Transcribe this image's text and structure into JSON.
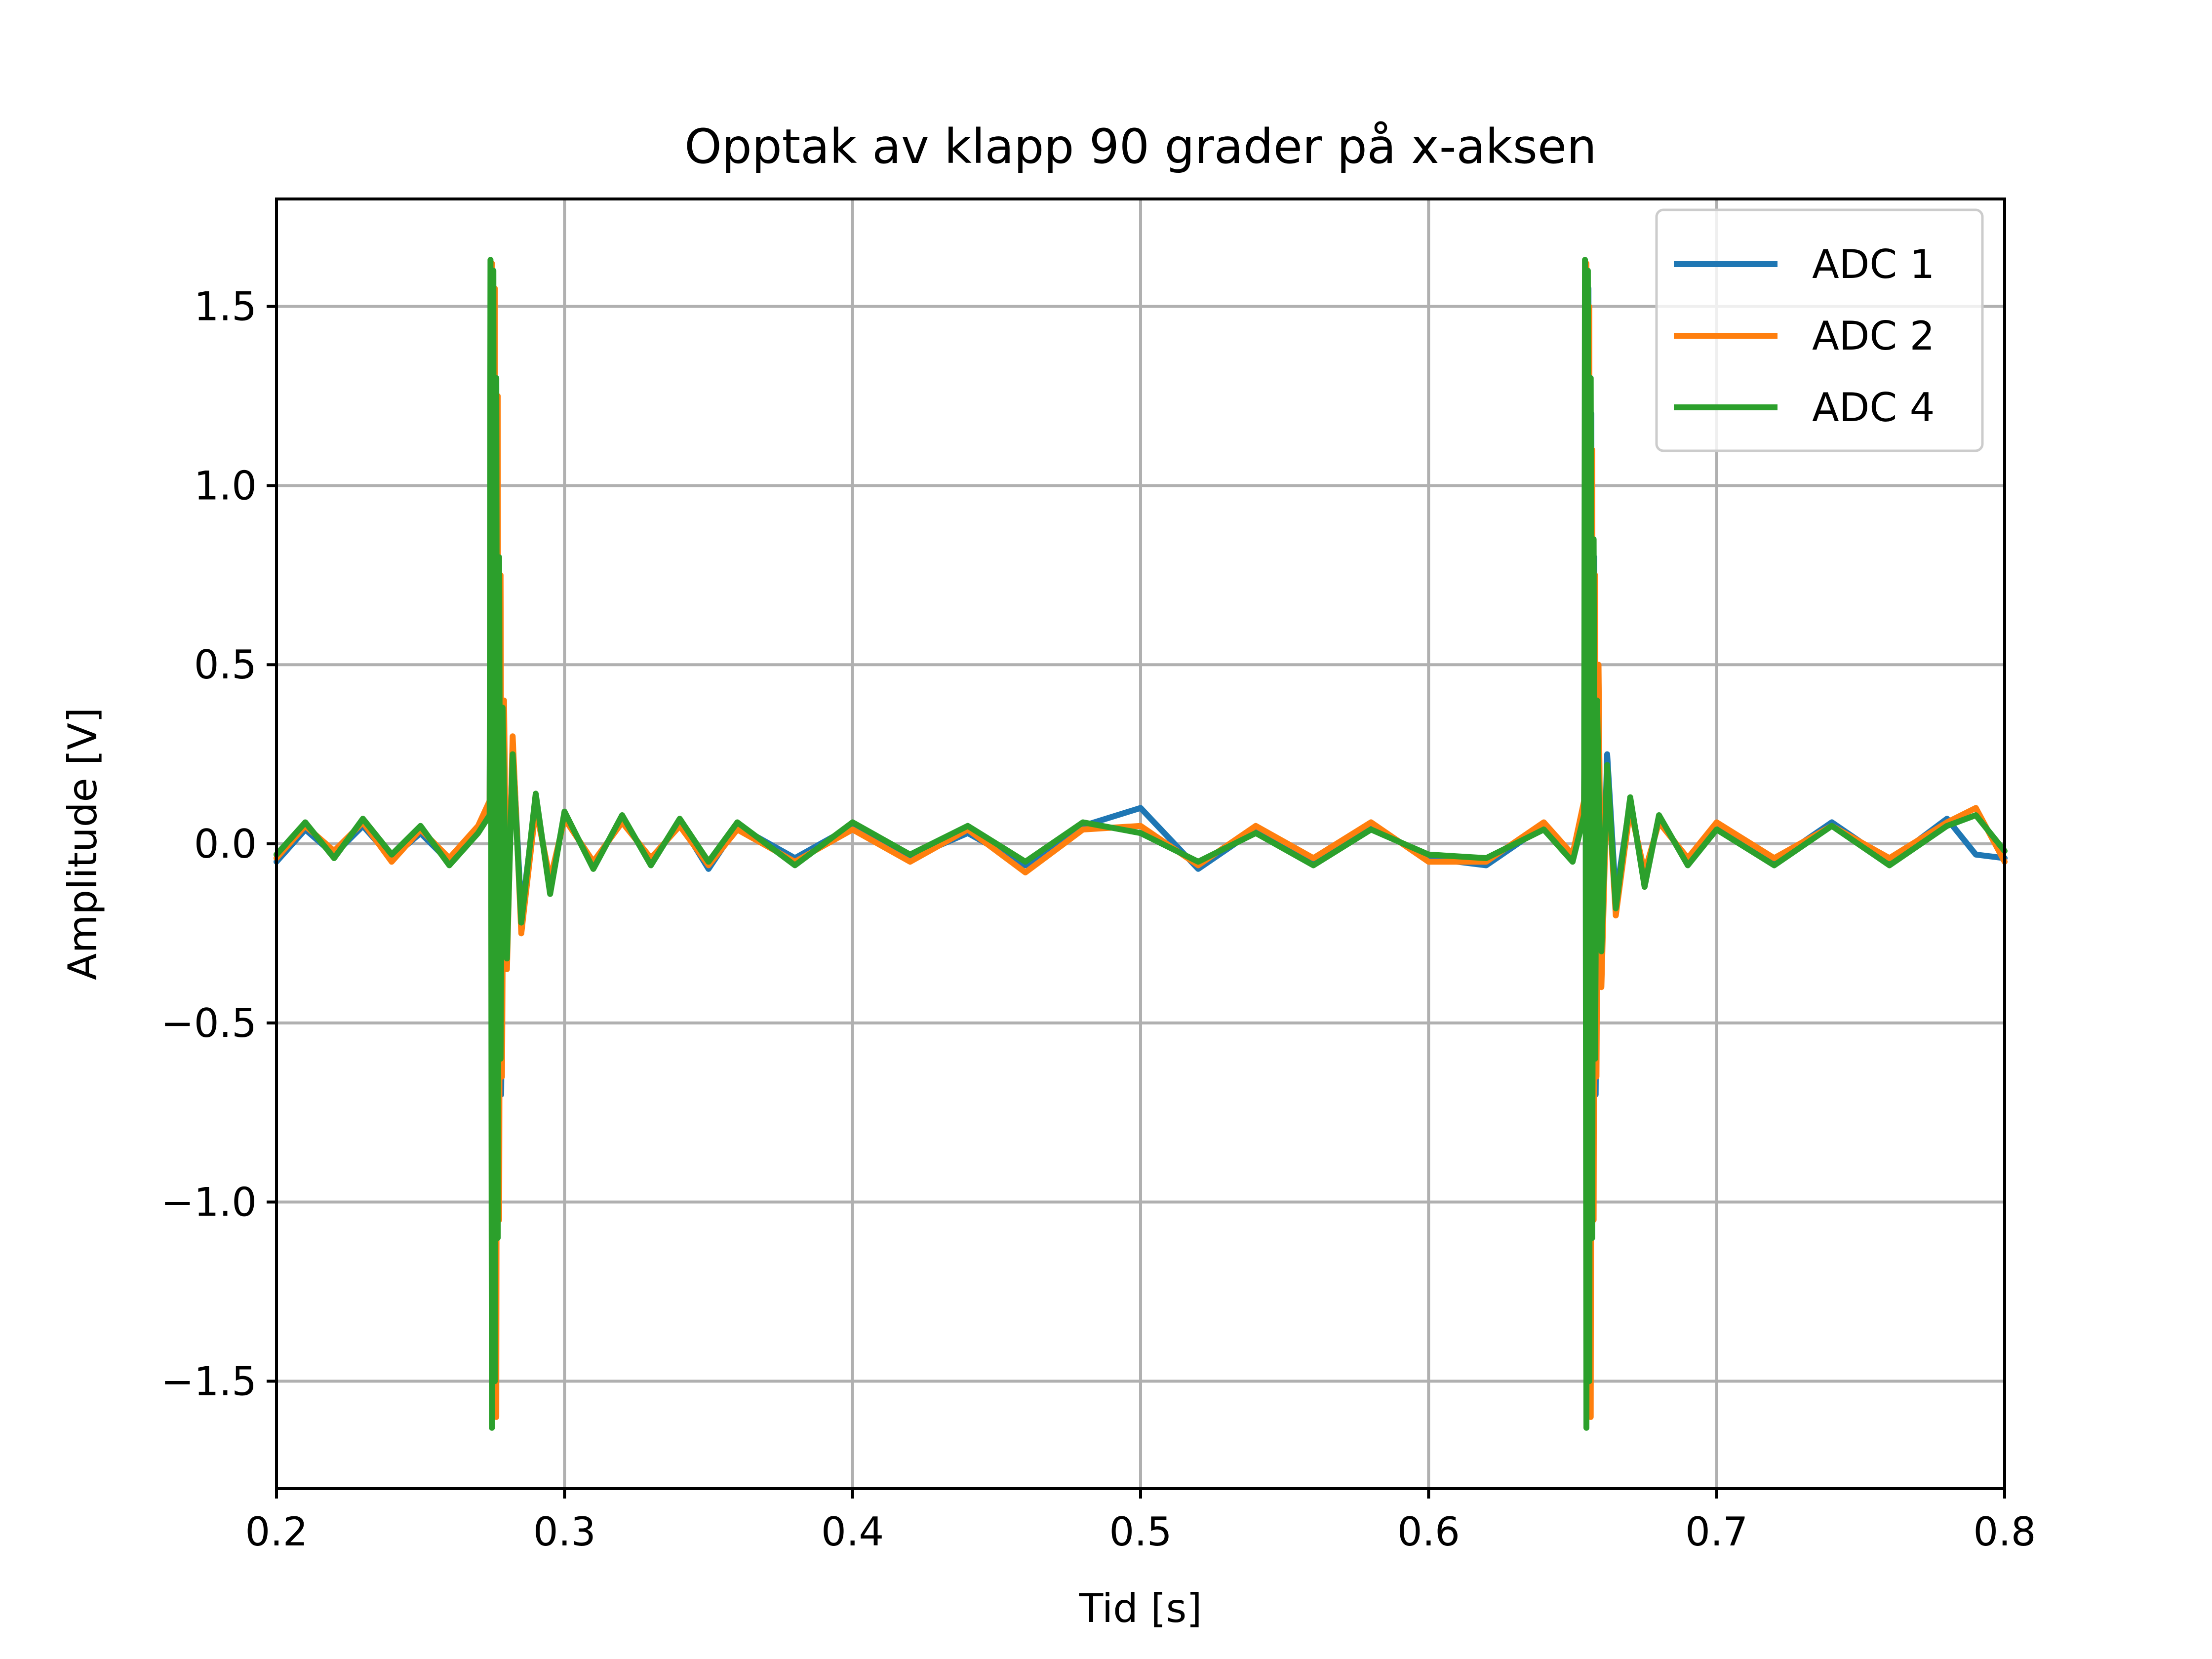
{
  "chart_data": {
    "type": "line",
    "title": "Opptak av klapp 90 grader på x-aksen",
    "xlabel": "Tid [s]",
    "ylabel": "Amplitude [V]",
    "xlim": [
      0.2,
      0.8
    ],
    "ylim": [
      -1.8,
      1.8
    ],
    "xticks": [
      0.2,
      0.3,
      0.4,
      0.5,
      0.6,
      0.7,
      0.8
    ],
    "xtick_labels": [
      "0.2",
      "0.3",
      "0.4",
      "0.5",
      "0.6",
      "0.7",
      "0.8"
    ],
    "yticks": [
      -1.5,
      -1.0,
      -0.5,
      0.0,
      0.5,
      1.0,
      1.5
    ],
    "ytick_labels": [
      "−1.5",
      "−1.0",
      "−0.5",
      "0.0",
      "0.5",
      "1.0",
      "1.5"
    ],
    "grid": true,
    "legend_position": "top-right",
    "series": [
      {
        "name": "ADC 1",
        "color": "#1f77b4",
        "x": [
          0.2,
          0.21,
          0.22,
          0.23,
          0.24,
          0.25,
          0.26,
          0.27,
          0.274,
          0.2745,
          0.275,
          0.2755,
          0.276,
          0.2765,
          0.277,
          0.2775,
          0.278,
          0.279,
          0.28,
          0.282,
          0.285,
          0.29,
          0.295,
          0.3,
          0.31,
          0.32,
          0.33,
          0.34,
          0.35,
          0.36,
          0.38,
          0.4,
          0.42,
          0.44,
          0.46,
          0.48,
          0.5,
          0.52,
          0.54,
          0.56,
          0.58,
          0.6,
          0.62,
          0.64,
          0.65,
          0.654,
          0.6545,
          0.655,
          0.6555,
          0.656,
          0.6565,
          0.657,
          0.6575,
          0.658,
          0.659,
          0.66,
          0.662,
          0.665,
          0.67,
          0.675,
          0.68,
          0.69,
          0.7,
          0.72,
          0.74,
          0.76,
          0.78,
          0.79,
          0.8
        ],
        "y": [
          -0.05,
          0.04,
          -0.03,
          0.05,
          -0.04,
          0.03,
          -0.05,
          0.04,
          0.1,
          1.6,
          -1.6,
          1.5,
          -1.55,
          1.2,
          -1.0,
          0.7,
          -0.7,
          0.35,
          -0.3,
          0.28,
          -0.2,
          0.12,
          -0.12,
          0.08,
          -0.06,
          0.07,
          -0.05,
          0.06,
          -0.07,
          0.05,
          -0.04,
          0.05,
          -0.04,
          0.03,
          -0.06,
          0.05,
          0.1,
          -0.07,
          0.04,
          -0.05,
          0.05,
          -0.04,
          -0.06,
          0.05,
          -0.04,
          0.1,
          1.6,
          -1.6,
          1.55,
          -1.55,
          1.2,
          -1.0,
          0.8,
          -0.7,
          0.45,
          -0.35,
          0.25,
          -0.15,
          0.12,
          -0.1,
          0.07,
          -0.05,
          0.05,
          -0.05,
          0.06,
          -0.05,
          0.07,
          -0.03,
          -0.04
        ]
      },
      {
        "name": "ADC 2",
        "color": "#ff7f0e",
        "x": [
          0.2,
          0.21,
          0.22,
          0.23,
          0.24,
          0.25,
          0.26,
          0.27,
          0.274,
          0.2748,
          0.2753,
          0.2758,
          0.2763,
          0.2768,
          0.2773,
          0.2778,
          0.2783,
          0.279,
          0.28,
          0.282,
          0.285,
          0.29,
          0.295,
          0.3,
          0.31,
          0.32,
          0.33,
          0.34,
          0.35,
          0.36,
          0.38,
          0.4,
          0.42,
          0.44,
          0.46,
          0.48,
          0.5,
          0.52,
          0.54,
          0.56,
          0.58,
          0.6,
          0.62,
          0.64,
          0.65,
          0.654,
          0.6548,
          0.6553,
          0.6558,
          0.6563,
          0.6568,
          0.6573,
          0.6578,
          0.6583,
          0.659,
          0.66,
          0.662,
          0.665,
          0.67,
          0.675,
          0.68,
          0.69,
          0.7,
          0.72,
          0.74,
          0.76,
          0.78,
          0.79,
          0.8
        ],
        "y": [
          -0.04,
          0.05,
          -0.02,
          0.06,
          -0.05,
          0.04,
          -0.04,
          0.05,
          0.12,
          1.62,
          -1.58,
          1.55,
          -1.6,
          1.25,
          -1.05,
          0.75,
          -0.65,
          0.4,
          -0.35,
          0.3,
          -0.25,
          0.1,
          -0.1,
          0.07,
          -0.05,
          0.06,
          -0.04,
          0.05,
          -0.06,
          0.04,
          -0.05,
          0.04,
          -0.05,
          0.04,
          -0.08,
          0.04,
          0.05,
          -0.06,
          0.05,
          -0.04,
          0.06,
          -0.05,
          -0.05,
          0.06,
          -0.03,
          0.12,
          1.62,
          -1.6,
          1.5,
          -1.6,
          1.1,
          -1.05,
          0.75,
          -0.65,
          0.5,
          -0.4,
          0.2,
          -0.2,
          0.1,
          -0.08,
          0.06,
          -0.04,
          0.06,
          -0.04,
          0.05,
          -0.04,
          0.06,
          0.1,
          -0.05
        ]
      },
      {
        "name": "ADC 4",
        "color": "#2ca02c",
        "x": [
          0.2,
          0.21,
          0.22,
          0.23,
          0.24,
          0.25,
          0.26,
          0.27,
          0.274,
          0.2743,
          0.2748,
          0.2753,
          0.2758,
          0.2763,
          0.2768,
          0.2773,
          0.2778,
          0.2785,
          0.28,
          0.282,
          0.285,
          0.29,
          0.295,
          0.3,
          0.31,
          0.32,
          0.33,
          0.34,
          0.35,
          0.36,
          0.38,
          0.4,
          0.42,
          0.44,
          0.46,
          0.48,
          0.5,
          0.52,
          0.54,
          0.56,
          0.58,
          0.6,
          0.62,
          0.64,
          0.65,
          0.654,
          0.6543,
          0.6548,
          0.6553,
          0.6558,
          0.6563,
          0.6568,
          0.6573,
          0.6578,
          0.6585,
          0.66,
          0.662,
          0.665,
          0.67,
          0.675,
          0.68,
          0.69,
          0.7,
          0.72,
          0.74,
          0.76,
          0.78,
          0.79,
          0.8
        ],
        "y": [
          -0.03,
          0.06,
          -0.04,
          0.07,
          -0.03,
          0.05,
          -0.06,
          0.03,
          0.08,
          1.63,
          -1.63,
          1.6,
          -1.5,
          1.3,
          -1.1,
          0.8,
          -0.6,
          0.38,
          -0.32,
          0.25,
          -0.22,
          0.14,
          -0.14,
          0.09,
          -0.07,
          0.08,
          -0.06,
          0.07,
          -0.05,
          0.06,
          -0.06,
          0.06,
          -0.03,
          0.05,
          -0.05,
          0.06,
          0.03,
          -0.05,
          0.03,
          -0.06,
          0.04,
          -0.03,
          -0.04,
          0.04,
          -0.05,
          0.08,
          1.63,
          -1.63,
          1.6,
          -1.5,
          1.3,
          -1.1,
          0.85,
          -0.6,
          0.4,
          -0.3,
          0.22,
          -0.18,
          0.13,
          -0.12,
          0.08,
          -0.06,
          0.04,
          -0.06,
          0.05,
          -0.06,
          0.05,
          0.08,
          -0.02
        ]
      }
    ]
  }
}
